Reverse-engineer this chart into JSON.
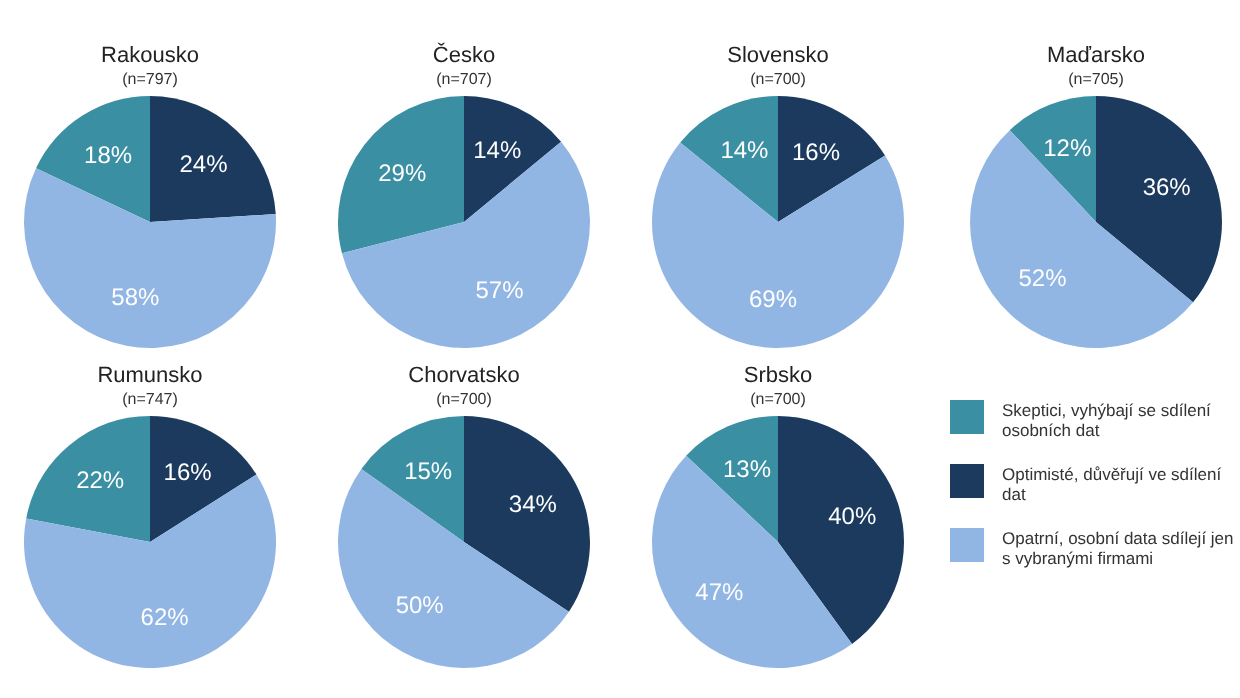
{
  "chart_data": [
    {
      "type": "pie",
      "title": "Rakousko",
      "subtitle": "(n=797)",
      "categories": [
        null,
        null,
        null
      ],
      "values": [
        18,
        24,
        58
      ],
      "colors": [
        "#3a8fa3",
        "#1b3a5e",
        "#92b6e3"
      ],
      "value_labels": [
        "18%",
        "24%",
        "58%"
      ]
    },
    {
      "type": "pie",
      "title": "Česko",
      "subtitle": "(n=707)",
      "categories": [
        null,
        null,
        null
      ],
      "values": [
        29,
        14,
        57
      ],
      "colors": [
        "#3a8fa3",
        "#1b3a5e",
        "#92b6e3"
      ],
      "value_labels": [
        "29%",
        "14%",
        "57%"
      ]
    },
    {
      "type": "pie",
      "title": "Slovensko",
      "subtitle": "(n=700)",
      "categories": [
        null,
        null,
        null
      ],
      "values": [
        14,
        16,
        69
      ],
      "colors": [
        "#3a8fa3",
        "#1b3a5e",
        "#92b6e3"
      ],
      "value_labels": [
        "14%",
        "16%",
        "69%"
      ]
    },
    {
      "type": "pie",
      "title": "Maďarsko",
      "subtitle": "(n=705)",
      "categories": [
        null,
        null,
        null
      ],
      "values": [
        12,
        36,
        52
      ],
      "colors": [
        "#3a8fa3",
        "#1b3a5e",
        "#92b6e3"
      ],
      "value_labels": [
        "12%",
        "36%",
        "52%"
      ]
    },
    {
      "type": "pie",
      "title": "Rumunsko",
      "subtitle": "(n=747)",
      "categories": [
        null,
        null,
        null
      ],
      "values": [
        22,
        16,
        62
      ],
      "colors": [
        "#3a8fa3",
        "#1b3a5e",
        "#92b6e3"
      ],
      "value_labels": [
        "22%",
        "16%",
        "62%"
      ]
    },
    {
      "type": "pie",
      "title": "Chorvatsko",
      "subtitle": "(n=700)",
      "categories": [
        null,
        null,
        null
      ],
      "values": [
        15,
        34,
        50
      ],
      "colors": [
        "#3a8fa3",
        "#1b3a5e",
        "#92b6e3"
      ],
      "value_labels": [
        "15%",
        "34%",
        "50%"
      ]
    },
    {
      "type": "pie",
      "title": "Srbsko",
      "subtitle": "(n=700)",
      "categories": [
        "Skeptici, vyhýbají se sdílení osobních dat",
        "Optimisté, důvěřují ve sdílení dat",
        "Opatrní, osobní data sdílejí jen s vybranými firmami"
      ],
      "values": [
        13,
        40,
        47
      ],
      "colors": [
        "#3a8fa3",
        "#1b3a5e",
        "#92b6e3"
      ],
      "value_labels": [
        "13%",
        "40%",
        "47%"
      ],
      "legend": "right"
    }
  ]
}
